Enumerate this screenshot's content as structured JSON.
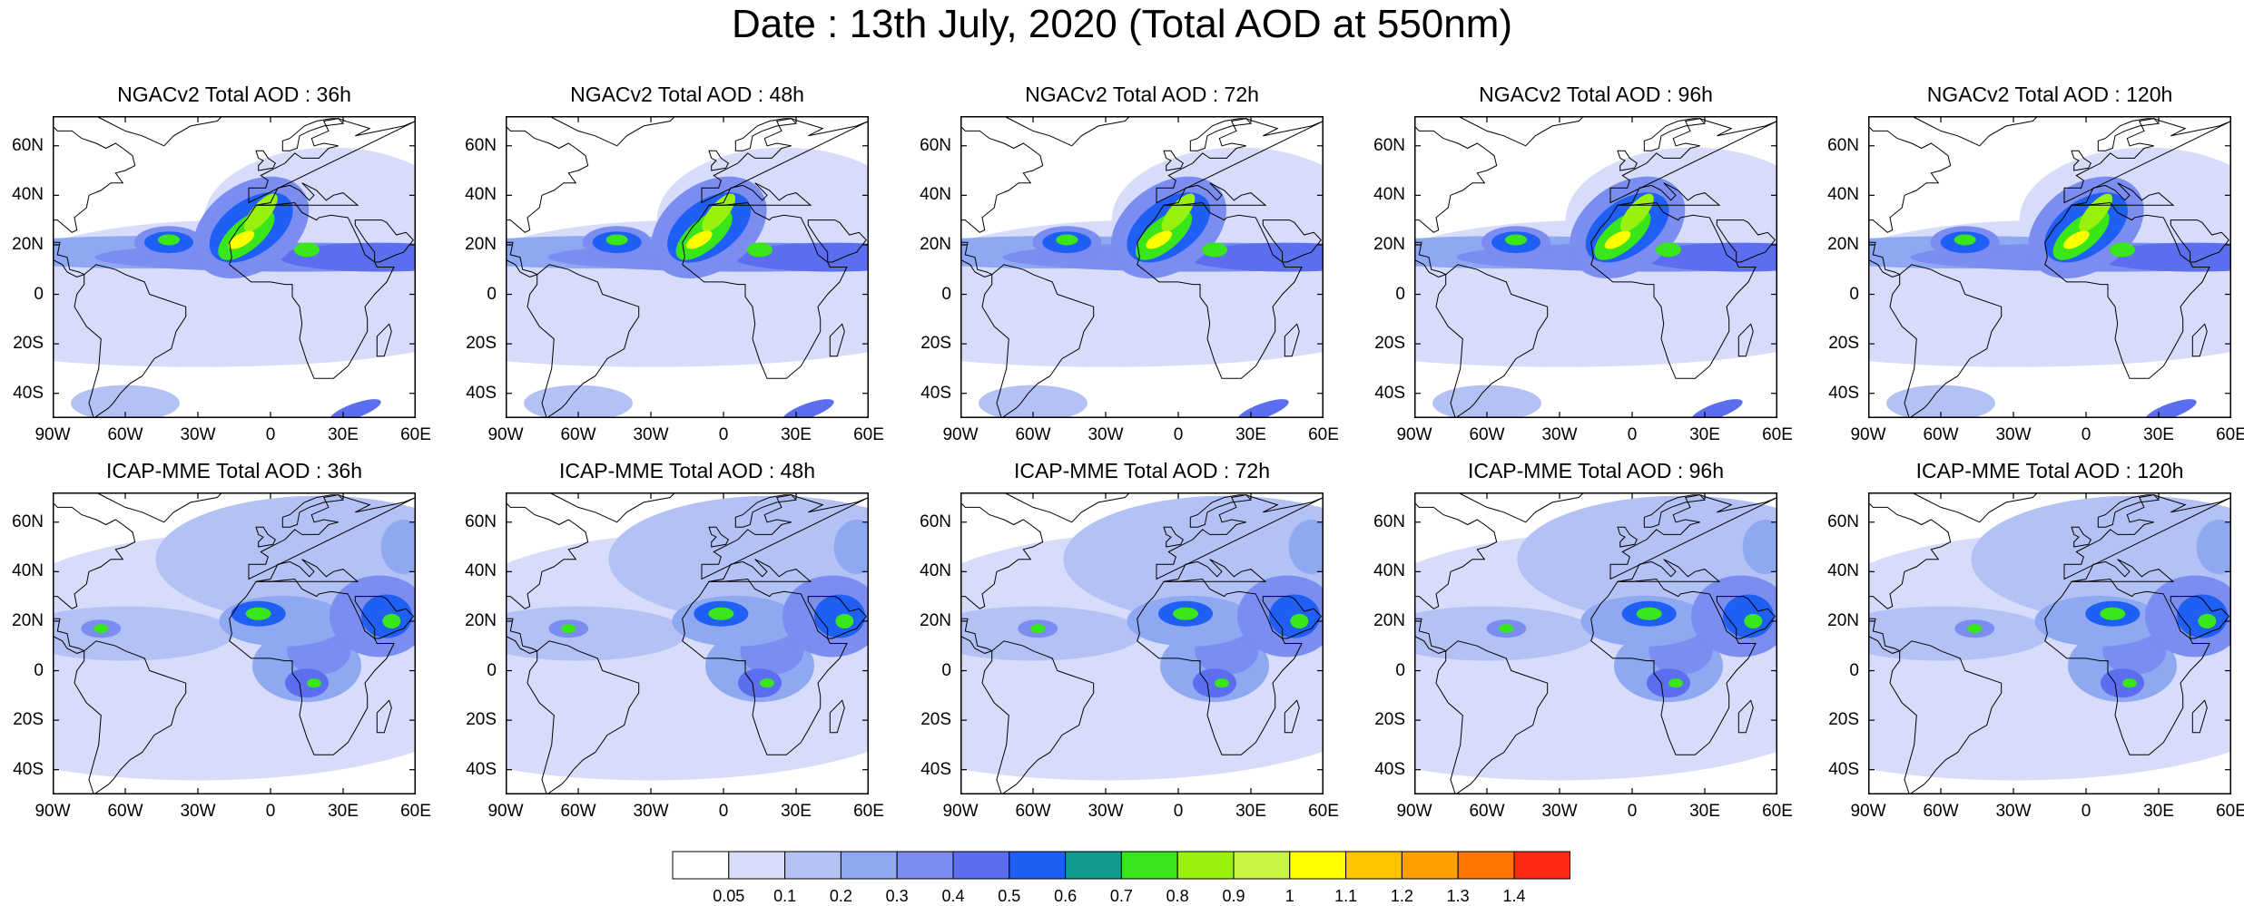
{
  "title": "Date : 13th July, 2020 (Total AOD at 550nm)",
  "panels": [
    {
      "title": "NGACv2 Total AOD : 36h",
      "model": "NGACv2",
      "lead": "36h"
    },
    {
      "title": "NGACv2 Total AOD : 48h",
      "model": "NGACv2",
      "lead": "48h"
    },
    {
      "title": "NGACv2 Total AOD : 72h",
      "model": "NGACv2",
      "lead": "72h"
    },
    {
      "title": "NGACv2 Total AOD : 96h",
      "model": "NGACv2",
      "lead": "96h"
    },
    {
      "title": "NGACv2 Total AOD : 120h",
      "model": "NGACv2",
      "lead": "120h"
    },
    {
      "title": "ICAP-MME Total AOD : 36h",
      "model": "ICAP-MME",
      "lead": "36h"
    },
    {
      "title": "ICAP-MME Total AOD : 48h",
      "model": "ICAP-MME",
      "lead": "48h"
    },
    {
      "title": "ICAP-MME Total AOD : 72h",
      "model": "ICAP-MME",
      "lead": "72h"
    },
    {
      "title": "ICAP-MME Total AOD : 96h",
      "model": "ICAP-MME",
      "lead": "96h"
    },
    {
      "title": "ICAP-MME Total AOD : 120h",
      "model": "ICAP-MME",
      "lead": "120h"
    }
  ],
  "lat_ticks": [
    "60N",
    "40N",
    "20N",
    "0",
    "20S",
    "40S"
  ],
  "lat_values": [
    60,
    40,
    20,
    0,
    -20,
    -40
  ],
  "lon_ticks": [
    "90W",
    "60W",
    "30W",
    "0",
    "30E",
    "60E"
  ],
  "lon_values": [
    -90,
    -60,
    -30,
    0,
    30,
    60
  ],
  "domain": {
    "lon_range": [
      -90,
      60
    ],
    "lat_range": [
      -50,
      72
    ]
  },
  "colorbar": {
    "labels": [
      "0.05",
      "0.1",
      "0.2",
      "0.3",
      "0.4",
      "0.5",
      "0.6",
      "0.7",
      "0.8",
      "0.9",
      "1",
      "1.1",
      "1.2",
      "1.3",
      "1.4"
    ],
    "colors": [
      "#ffffff",
      "#d6dcfa",
      "#b3c1f5",
      "#8fa8f2",
      "#7b8df0",
      "#5c6ef0",
      "#1f5ff5",
      "#119a8e",
      "#39e619",
      "#99f20d",
      "#c8f545",
      "#ffff00",
      "#ffc400",
      "#ff9f00",
      "#ff7700",
      "#ff2a14"
    ]
  }
}
